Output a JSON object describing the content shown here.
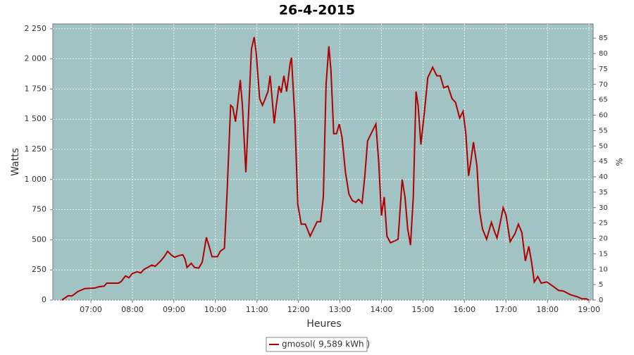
{
  "chart_data": {
    "type": "line",
    "title": "26-4-2015",
    "ylabel": "Watts",
    "y2label": "%",
    "xlabel": "Heures",
    "x": [
      "06:18",
      "06:27",
      "06:33",
      "06:41",
      "06:51",
      "07:06",
      "07:11",
      "07:19",
      "07:23",
      "07:40",
      "07:44",
      "07:50",
      "07:55",
      "08:00",
      "08:07",
      "08:12",
      "08:17",
      "08:22",
      "08:28",
      "08:33",
      "08:41",
      "08:46",
      "08:51",
      "08:56",
      "09:01",
      "09:08",
      "09:13",
      "09:16",
      "09:19",
      "09:25",
      "09:30",
      "09:36",
      "09:41",
      "09:47",
      "09:51",
      "09:55",
      "10:03",
      "10:07",
      "10:13",
      "10:17",
      "10:22",
      "10:25",
      "10:29",
      "10:32",
      "10:36",
      "10:39",
      "10:44",
      "10:48",
      "10:52",
      "10:56",
      "10:59",
      "11:04",
      "11:08",
      "11:12",
      "11:16",
      "11:19",
      "11:22",
      "11:25",
      "11:28",
      "11:32",
      "11:35",
      "11:39",
      "11:43",
      "11:48",
      "11:50",
      "11:55",
      "11:59",
      "12:04",
      "12:10",
      "12:17",
      "12:22",
      "12:27",
      "12:32",
      "12:36",
      "12:40",
      "12:44",
      "12:47",
      "12:51",
      "12:55",
      "12:59",
      "13:03",
      "13:08",
      "13:13",
      "13:18",
      "13:23",
      "13:27",
      "13:32",
      "13:36",
      "13:40",
      "13:45",
      "13:52",
      "13:56",
      "14:00",
      "14:04",
      "14:08",
      "14:13",
      "14:19",
      "14:24",
      "14:30",
      "14:34",
      "14:38",
      "14:42",
      "14:46",
      "14:50",
      "14:53",
      "14:57",
      "15:02",
      "15:07",
      "15:14",
      "15:20",
      "15:25",
      "15:30",
      "15:36",
      "15:42",
      "15:47",
      "15:53",
      "15:58",
      "16:02",
      "16:06",
      "16:09",
      "16:13",
      "16:18",
      "16:22",
      "16:26",
      "16:32",
      "16:39",
      "16:43",
      "16:47",
      "16:51",
      "16:56",
      "17:00",
      "17:06",
      "17:13",
      "17:18",
      "17:23",
      "17:28",
      "17:33",
      "17:37",
      "17:41",
      "17:46",
      "17:51",
      "17:59",
      "18:08",
      "18:16",
      "18:23",
      "18:33",
      "18:44",
      "18:50",
      "18:56",
      "19:00"
    ],
    "series": [
      {
        "name": "gmosol( 9,589 kWh )",
        "color": "#b00000",
        "values": [
          0,
          35,
          35,
          70,
          95,
          100,
          110,
          115,
          140,
          140,
          155,
          200,
          185,
          220,
          235,
          225,
          255,
          270,
          290,
          280,
          325,
          360,
          405,
          375,
          355,
          370,
          375,
          340,
          270,
          305,
          270,
          265,
          315,
          520,
          445,
          360,
          360,
          405,
          430,
          910,
          1615,
          1600,
          1480,
          1615,
          1825,
          1615,
          1060,
          1555,
          2080,
          2180,
          2050,
          1670,
          1615,
          1670,
          1730,
          1860,
          1670,
          1465,
          1615,
          1775,
          1720,
          1860,
          1730,
          1965,
          2010,
          1495,
          795,
          630,
          630,
          530,
          590,
          650,
          650,
          855,
          1790,
          2105,
          1905,
          1380,
          1380,
          1460,
          1350,
          1060,
          880,
          825,
          810,
          835,
          805,
          1030,
          1320,
          1380,
          1460,
          1145,
          700,
          855,
          530,
          475,
          490,
          505,
          1000,
          855,
          590,
          455,
          855,
          1730,
          1615,
          1290,
          1555,
          1845,
          1930,
          1860,
          1860,
          1760,
          1775,
          1670,
          1640,
          1510,
          1565,
          1380,
          1030,
          1145,
          1310,
          1115,
          735,
          590,
          505,
          645,
          575,
          515,
          620,
          765,
          705,
          485,
          550,
          630,
          560,
          325,
          445,
          315,
          150,
          195,
          140,
          150,
          115,
          80,
          75,
          45,
          25,
          10,
          10,
          0
        ]
      }
    ],
    "xlim": [
      "06:05",
      "19:06"
    ],
    "xticks": [
      "07:00",
      "08:00",
      "09:00",
      "10:00",
      "11:00",
      "12:00",
      "13:00",
      "14:00",
      "15:00",
      "16:00",
      "17:00",
      "18:00",
      "19:00"
    ],
    "ylim": [
      0,
      2290
    ],
    "yticks": [
      0,
      250,
      500,
      750,
      {
        "value": 1000,
        "label": "1 000"
      },
      {
        "value": 1250,
        "label": "1 250"
      },
      {
        "value": 1500,
        "label": "1 500"
      },
      {
        "value": 1750,
        "label": "1 750"
      },
      {
        "value": 2000,
        "label": "2 000"
      },
      {
        "value": 2250,
        "label": "2 250"
      }
    ],
    "y2lim": [
      0,
      89.6
    ],
    "y2ticks": [
      0,
      5,
      10,
      15,
      20,
      25,
      30,
      35,
      40,
      45,
      50,
      55,
      60,
      65,
      70,
      75,
      80,
      85
    ],
    "grid": true,
    "legend": "bottom",
    "background": "#a2c3c3"
  }
}
